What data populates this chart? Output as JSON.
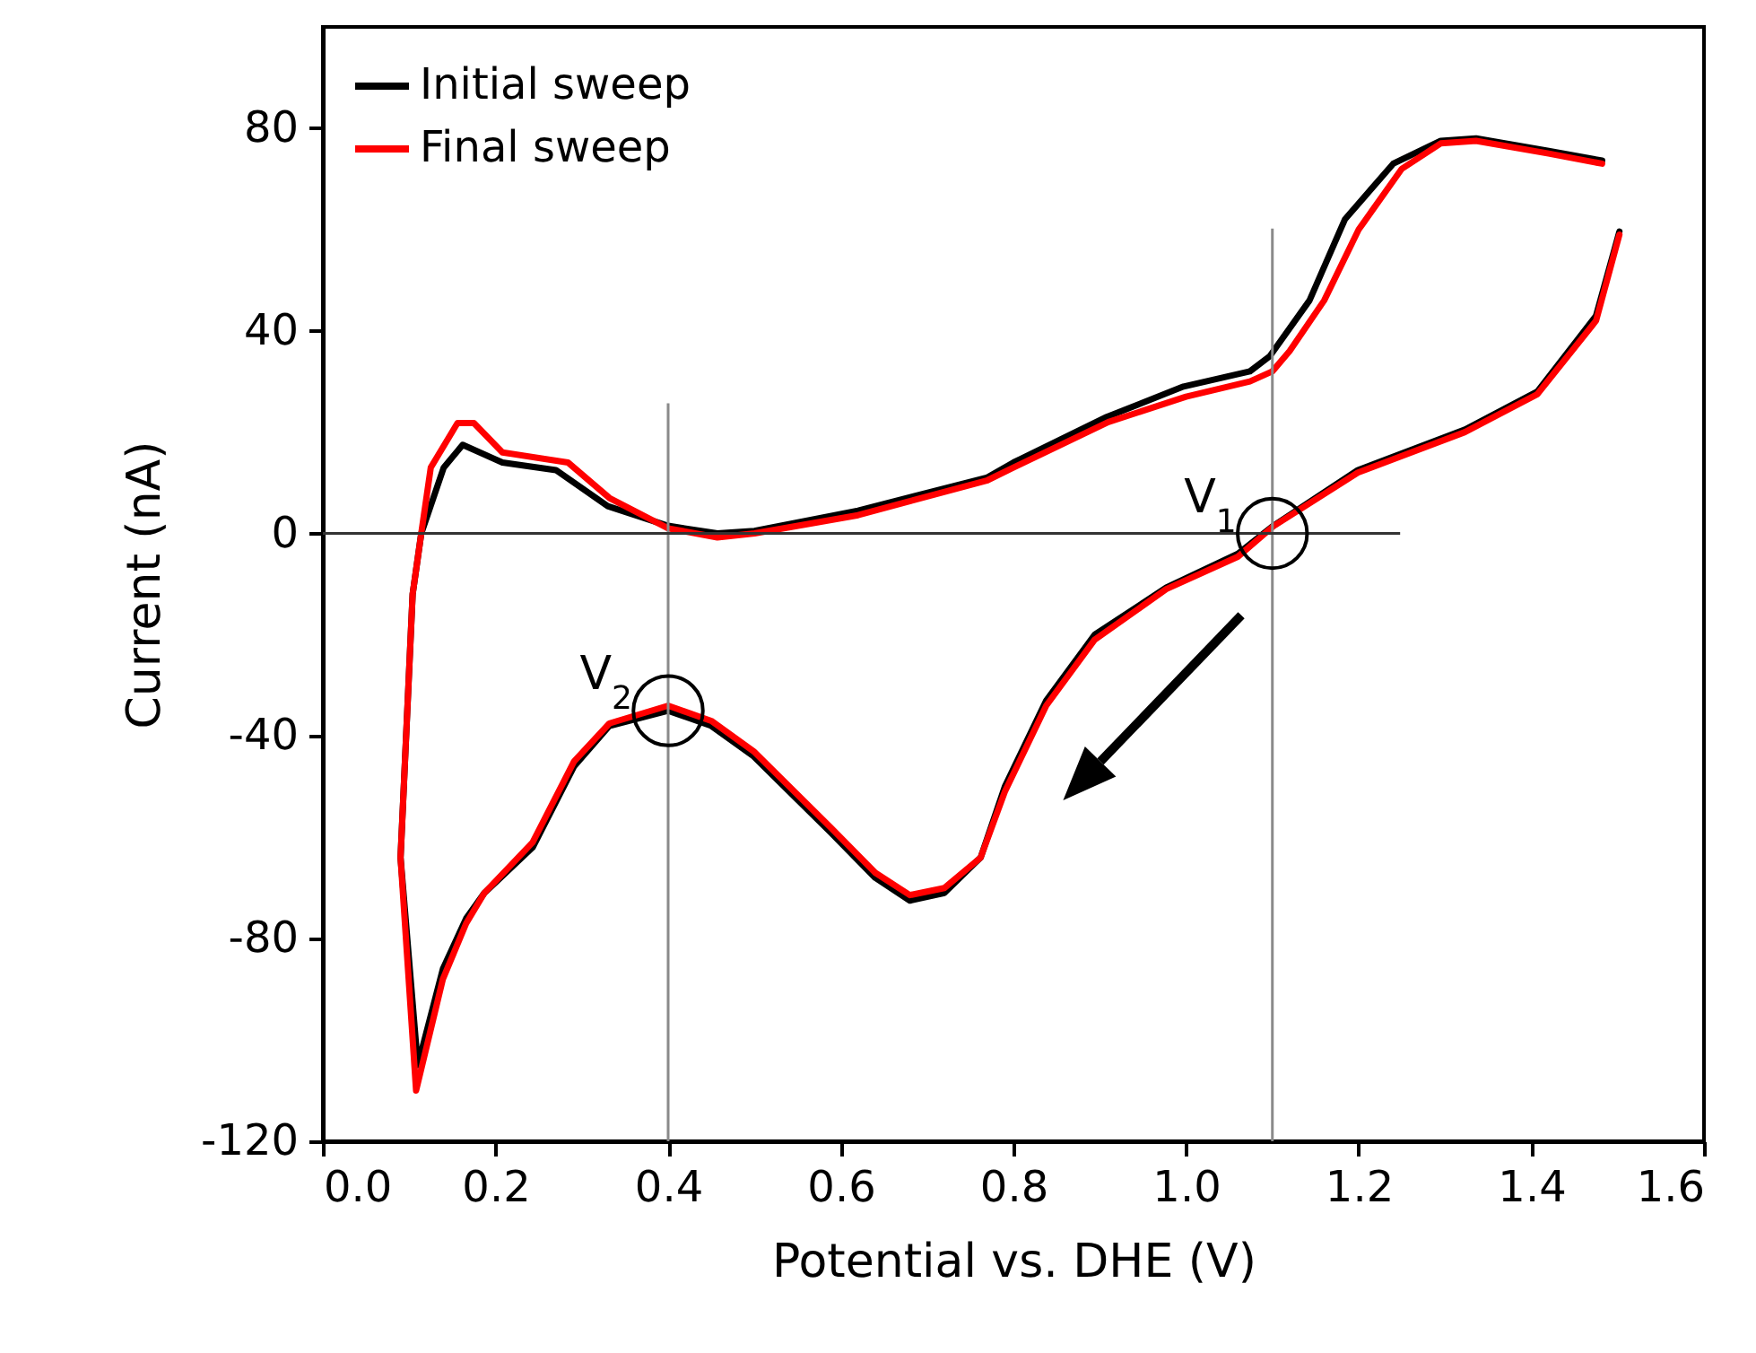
{
  "chart_data": {
    "type": "line",
    "xlabel": "Potential vs. DHE (V)",
    "ylabel": "Current (nA)",
    "xlim": [
      0,
      1.6
    ],
    "ylim": [
      -120,
      100
    ],
    "xticks": [
      {
        "value": 0,
        "label": "0.0"
      },
      {
        "value": 0.2,
        "label": "0.2"
      },
      {
        "value": 0.4,
        "label": "0.4"
      },
      {
        "value": 0.6,
        "label": "0.6"
      },
      {
        "value": 0.8,
        "label": "0.8"
      },
      {
        "value": 1,
        "label": "1.0"
      },
      {
        "value": 1.2,
        "label": "1.2"
      },
      {
        "value": 1.4,
        "label": "1.4"
      },
      {
        "value": 1.6,
        "label": "1.6"
      }
    ],
    "yticks": [
      -120,
      -80,
      -40,
      0,
      40,
      80
    ],
    "grid": false,
    "legend": "top left",
    "line_style": "solid",
    "ref_lines": [
      {
        "axis": "x",
        "value": 0.4
      },
      {
        "axis": "x",
        "value": 1.1
      },
      {
        "axis": "y",
        "value": 0
      }
    ],
    "annotations": [
      {
        "text": "V$_{1}$",
        "x": 1.1,
        "y": 0
      },
      {
        "text": "V$_{2}$",
        "x": 0.4,
        "y": -35
      }
    ],
    "series": [
      {
        "name": "Initial sweep",
        "color": "#000000",
        "x": [
          1.482,
          1.42,
          1.336,
          1.295,
          1.24,
          1.184,
          1.143,
          1.097,
          1.074,
          0.997,
          0.908,
          0.8,
          0.769,
          0.62,
          0.5,
          0.457,
          0.4,
          0.33,
          0.27,
          0.208,
          0.162,
          0.14,
          0.114,
          0.104,
          0.09,
          0.11,
          0.139,
          0.166,
          0.187,
          0.243,
          0.291,
          0.332,
          0.4,
          0.45,
          0.499,
          0.588,
          0.64,
          0.68,
          0.72,
          0.762,
          0.79,
          0.838,
          0.894,
          0.977,
          1.06,
          1.101,
          1.199,
          1.323,
          1.407,
          1.475,
          1.502
        ],
        "values": [
          73.6,
          75.5,
          78,
          77.5,
          73,
          62,
          46,
          35,
          32,
          29,
          23,
          14,
          11,
          4.5,
          0.5,
          0,
          1.5,
          5.4,
          12.5,
          14,
          17.5,
          13,
          0,
          -12,
          -64,
          -105,
          -86,
          -76,
          -71,
          -62,
          -46,
          -38,
          -35,
          -38,
          -44,
          -59,
          -68,
          -72.5,
          -71,
          -64,
          -50,
          -33,
          -20,
          -10.7,
          -4,
          1.5,
          12.5,
          20.5,
          28,
          43,
          59.6
        ]
      },
      {
        "name": "Final sweep",
        "color": "#ff0000",
        "x": [
          1.482,
          1.42,
          1.336,
          1.295,
          1.25,
          1.2,
          1.16,
          1.12,
          1.1,
          1.074,
          1.0,
          0.91,
          0.8,
          0.77,
          0.62,
          0.5,
          0.457,
          0.4,
          0.332,
          0.284,
          0.208,
          0.175,
          0.156,
          0.125,
          0.114,
          0.104,
          0.09,
          0.108,
          0.139,
          0.166,
          0.187,
          0.243,
          0.291,
          0.332,
          0.4,
          0.45,
          0.499,
          0.588,
          0.64,
          0.68,
          0.72,
          0.762,
          0.79,
          0.838,
          0.894,
          0.977,
          1.06,
          1.101,
          1.199,
          1.323,
          1.407,
          1.475,
          1.502
        ],
        "values": [
          73,
          75,
          77.5,
          77,
          72,
          60,
          46,
          36,
          32,
          30,
          27,
          22,
          13,
          10.5,
          3.6,
          0,
          -0.8,
          1,
          7,
          14,
          16,
          21.8,
          21.8,
          13,
          0,
          -12,
          -64,
          -110,
          -88,
          -77,
          -71,
          -61,
          -45,
          -37.5,
          -34,
          -37,
          -43,
          -58,
          -67,
          -71.4,
          -70,
          -64,
          -51,
          -34,
          -21,
          -11,
          -4.6,
          1.4,
          12,
          20,
          27.5,
          42,
          59
        ]
      }
    ]
  }
}
